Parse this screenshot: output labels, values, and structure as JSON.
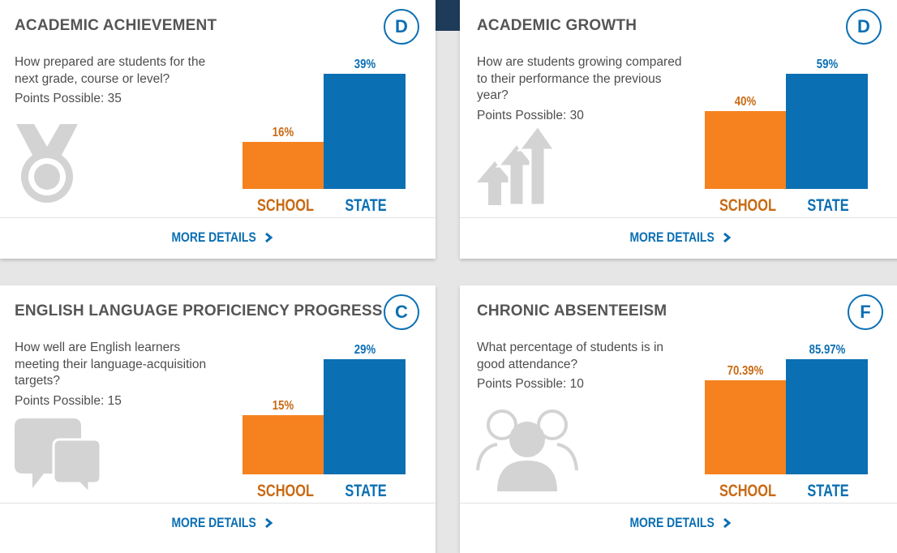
{
  "colors": {
    "school": "#f5821f",
    "state": "#0b6fb3",
    "icon": "#d3d3d3"
  },
  "cards": [
    {
      "title": "ACADEMIC ACHIEVEMENT",
      "grade": "D",
      "question": "How prepared are students for the next grade, course or level?",
      "points": "Points Possible: 35",
      "icon": "medal-icon",
      "school_label": "16%",
      "state_label": "39%",
      "school_value": 16,
      "state_value": 39,
      "more": "MORE DETAILS"
    },
    {
      "title": "ACADEMIC GROWTH",
      "grade": "D",
      "question": "How are students growing compared to their performance the previous year?",
      "points": "Points Possible: 30",
      "icon": "growth-arrows-icon",
      "school_label": "40%",
      "state_label": "59%",
      "school_value": 40,
      "state_value": 59,
      "more": "MORE DETAILS"
    },
    {
      "title": "ENGLISH LANGUAGE PROFICIENCY PROGRESS",
      "grade": "C",
      "question": "How well are English learners meeting their language-acquisition targets?",
      "points": "Points Possible: 15",
      "icon": "speech-bubbles-icon",
      "school_label": "15%",
      "state_label": "29%",
      "school_value": 15,
      "state_value": 29,
      "more": "MORE DETAILS"
    },
    {
      "title": "CHRONIC ABSENTEEISM",
      "grade": "F",
      "question": "What percentage of students is in good attendance?",
      "points": "Points Possible: 10",
      "icon": "people-group-icon",
      "school_label": "70.39%",
      "state_label": "85.97%",
      "school_value": 70.39,
      "state_value": 85.97,
      "more": "MORE DETAILS"
    }
  ],
  "category_labels": {
    "school": "SCHOOL",
    "state": "STATE"
  }
}
